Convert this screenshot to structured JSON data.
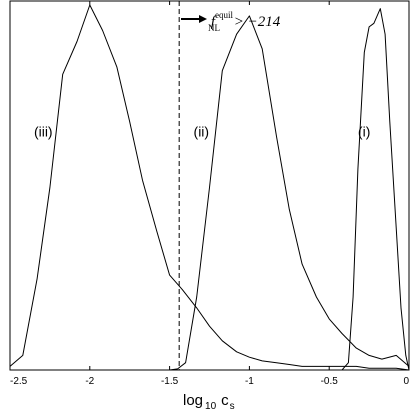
{
  "chart_data": {
    "type": "line",
    "xlabel_main": "log",
    "xlabel_sub": "10",
    "xlabel_var_main": "c",
    "xlabel_var_sub": "s",
    "ylabel": "",
    "xlim": [
      -2.5,
      0
    ],
    "ylim": [
      0,
      1
    ],
    "grid": false,
    "x_ticks": [
      {
        "value": -2.5,
        "label": "-2.5"
      },
      {
        "value": -2,
        "label": "-2"
      },
      {
        "value": -1.5,
        "label": "-1.5"
      },
      {
        "value": -1,
        "label": "-1"
      },
      {
        "value": -0.5,
        "label": "-0.5"
      },
      {
        "value": 0,
        "label": "0"
      }
    ],
    "threshold_line": {
      "x": -1.44,
      "style": "dashed"
    },
    "annotation": {
      "main": "f",
      "sup": "equil",
      "sub": "NL",
      "rest": " > −214"
    },
    "series": [
      {
        "name": "(iii)",
        "label_pos": {
          "x": -2.35,
          "y": 0.64
        },
        "x": [
          -2.5,
          -2.42,
          -2.33,
          -2.25,
          -2.17,
          -2.08,
          -2.0,
          -1.92,
          -1.83,
          -1.75,
          -1.67,
          -1.58,
          -1.5,
          -1.42,
          -1.33,
          -1.25,
          -1.17,
          -1.08,
          -1.0,
          -0.92,
          -0.83,
          -0.75,
          -0.67,
          -0.58,
          -0.5,
          -0.42,
          -0.33,
          -0.25,
          -0.17,
          -0.08,
          0.0
        ],
        "y": [
          0.01,
          0.04,
          0.25,
          0.5,
          0.81,
          0.9,
          1.0,
          0.93,
          0.83,
          0.68,
          0.52,
          0.38,
          0.26,
          0.22,
          0.17,
          0.12,
          0.08,
          0.05,
          0.035,
          0.025,
          0.02,
          0.015,
          0.01,
          0.01,
          0.01,
          0.01,
          0.01,
          0.005,
          0.005,
          0.005,
          0.0
        ]
      },
      {
        "name": "(ii)",
        "label_pos": {
          "x": -1.35,
          "y": 0.64
        },
        "x": [
          -1.5,
          -1.45,
          -1.4,
          -1.33,
          -1.25,
          -1.17,
          -1.08,
          -1.0,
          -0.92,
          -0.83,
          -0.75,
          -0.67,
          -0.58,
          -0.5,
          -0.42,
          -0.33,
          -0.25,
          -0.17,
          -0.08,
          0.0
        ],
        "y": [
          0.0,
          0.003,
          0.02,
          0.2,
          0.5,
          0.82,
          0.92,
          0.97,
          0.88,
          0.64,
          0.44,
          0.29,
          0.2,
          0.14,
          0.1,
          0.06,
          0.04,
          0.03,
          0.04,
          0.01
        ]
      },
      {
        "name": "(i)",
        "label_pos": {
          "x": -0.32,
          "y": 0.64
        },
        "x": [
          -0.42,
          -0.38,
          -0.35,
          -0.32,
          -0.28,
          -0.25,
          -0.22,
          -0.18,
          -0.15,
          -0.12,
          -0.08,
          -0.05,
          -0.02,
          0.0
        ],
        "y": [
          0.0,
          0.02,
          0.2,
          0.55,
          0.87,
          0.94,
          0.95,
          0.99,
          0.92,
          0.68,
          0.39,
          0.17,
          0.04,
          0.0
        ]
      }
    ]
  }
}
